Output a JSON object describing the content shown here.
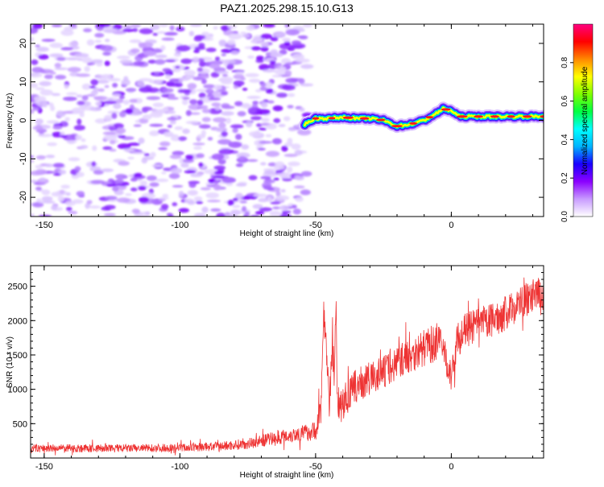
{
  "title": "PAZ1.2025.298.15.10.G13",
  "chart_data": [
    {
      "type": "heatmap",
      "title": "PAZ1.2025.298.15.10.G13",
      "xlabel": "Height of straight line (km)",
      "ylabel": "Frequency (Hz)",
      "xlim": [
        -155,
        34
      ],
      "ylim": [
        -25,
        25
      ],
      "xticks": [
        -150,
        -100,
        -50,
        0
      ],
      "xtick_labels": [
        "-150",
        "-100",
        "-50",
        "0"
      ],
      "yticks": [
        -20,
        -10,
        0,
        10,
        20
      ],
      "ytick_labels": [
        "-20",
        "-10",
        "0",
        "10",
        "20"
      ],
      "noise_region_x": [
        -155,
        -53
      ],
      "signal_trace": {
        "x": [
          -54,
          -50,
          -45,
          -40,
          -35,
          -30,
          -25,
          -20,
          -15,
          -10,
          -5,
          -3,
          0,
          3,
          10,
          20,
          30,
          34
        ],
        "y": [
          -1,
          0.5,
          0.5,
          0.8,
          0.5,
          0.5,
          0,
          -1.5,
          -1,
          0,
          2,
          3,
          2.5,
          1,
          1,
          1,
          1,
          1
        ]
      },
      "colorbar": {
        "label": "Normalized spectral amplitude",
        "range": [
          0,
          1
        ],
        "ticks": [
          0,
          0.2,
          0.4,
          0.6,
          0.8
        ],
        "tick_labels": [
          "0.0",
          "0.2",
          "0.4",
          "0.6",
          "0.8"
        ],
        "colors": [
          "#ffffff",
          "#c89bff",
          "#8b00ff",
          "#1a00ff",
          "#00b4ff",
          "#00ffff",
          "#00ff44",
          "#7fff00",
          "#ffff00",
          "#ff8800",
          "#ff0000",
          "#ff0080"
        ]
      }
    },
    {
      "type": "line",
      "xlabel": "Height of straight line (km)",
      "ylabel": "SNR (10 * v/v)",
      "xlim": [
        -155,
        34
      ],
      "ylim": [
        0,
        2800
      ],
      "xticks": [
        -150,
        -100,
        -50,
        0
      ],
      "xtick_labels": [
        "-150",
        "-100",
        "-50",
        "0"
      ],
      "yticks": [
        500,
        1000,
        1500,
        2000,
        2500
      ],
      "ytick_labels": [
        "500",
        "1000",
        "1500",
        "2000",
        "2500"
      ],
      "color": "#ee3333",
      "envelope": {
        "x": [
          -155,
          -140,
          -120,
          -100,
          -85,
          -75,
          -70,
          -65,
          -60,
          -55,
          -52,
          -50,
          -48,
          -47,
          -46,
          -45,
          -44,
          -43,
          -42.5,
          -42,
          -41,
          -40,
          -38,
          -35,
          -30,
          -25,
          -20,
          -15,
          -10,
          -5,
          -2,
          0,
          2,
          5,
          10,
          15,
          20,
          25,
          30,
          34
        ],
        "mean": [
          140,
          140,
          140,
          150,
          170,
          210,
          250,
          290,
          330,
          360,
          380,
          400,
          700,
          2200,
          1500,
          800,
          1600,
          1200,
          2400,
          900,
          700,
          800,
          900,
          1050,
          1150,
          1250,
          1400,
          1500,
          1600,
          1700,
          1500,
          1150,
          1700,
          1850,
          1950,
          2000,
          2100,
          2250,
          2350,
          2400
        ],
        "amp": [
          60,
          60,
          60,
          60,
          70,
          80,
          90,
          100,
          110,
          120,
          130,
          140,
          300,
          200,
          300,
          200,
          300,
          300,
          200,
          300,
          250,
          250,
          250,
          250,
          250,
          250,
          250,
          260,
          270,
          280,
          280,
          200,
          250,
          250,
          250,
          250,
          250,
          250,
          250,
          250
        ]
      }
    }
  ]
}
